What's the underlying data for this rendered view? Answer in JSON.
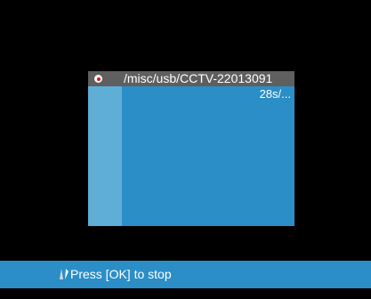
{
  "dialog": {
    "file_path": "/misc/usb/CCTV-22013091",
    "duration": "28s/..."
  },
  "footer": {
    "hint": "Press [OK] to stop"
  },
  "icons": {
    "record": "record-icon",
    "navigation": "navigation-arrows-icon"
  },
  "colors": {
    "background": "#000000",
    "panel": "#2b8ec6",
    "header": "#5f5f5f",
    "strip": "#5faed8",
    "record": "#e01818"
  }
}
